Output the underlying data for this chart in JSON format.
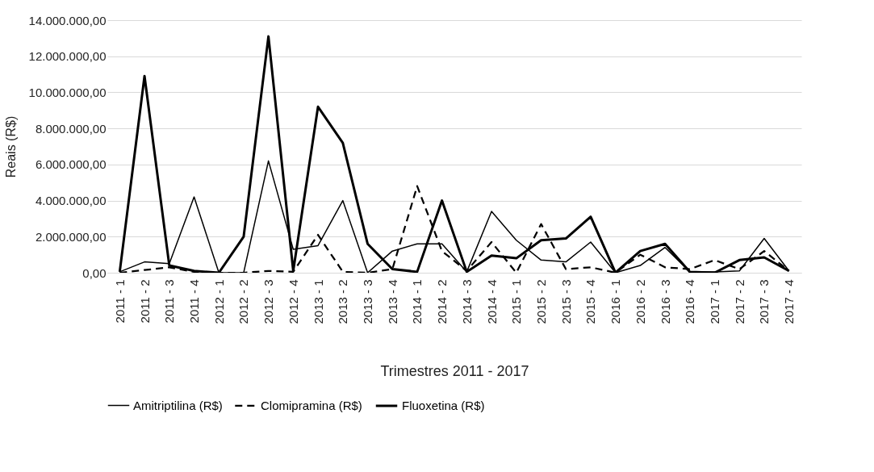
{
  "chart_data": {
    "type": "line",
    "xlabel": "Trimestres 2011 - 2017",
    "ylabel": "Reais (R$)",
    "categories": [
      "2011 - 1",
      "2011 - 2",
      "2011 - 3",
      "2011 - 4",
      "2012 - 1",
      "2012 - 2",
      "2012 - 3",
      "2012 - 4",
      "2013 - 1",
      "2013 - 2",
      "2013 - 3",
      "2013 - 4",
      "2014 - 1",
      "2014 - 2",
      "2014 - 3",
      "2014 - 4",
      "2015 - 1",
      "2015 - 2",
      "2015 - 3",
      "2015 - 4",
      "2016 - 1",
      "2016 - 2",
      "2016 - 3",
      "2016 - 4",
      "2017 - 1",
      "2017 - 2",
      "2017 - 3",
      "2017 - 4"
    ],
    "series": [
      {
        "name": "Amitriptilina (R$)",
        "color": "#000000",
        "line_style": "solid",
        "values": [
          50000,
          600000,
          500000,
          4200000,
          0,
          0,
          6200000,
          1300000,
          1500000,
          4000000,
          0,
          1200000,
          1600000,
          1600000,
          50000,
          3400000,
          1800000,
          700000,
          600000,
          1700000,
          0,
          400000,
          1400000,
          50000,
          50000,
          100000,
          1900000,
          100000
        ]
      },
      {
        "name": "Clomipramina (R$)",
        "color": "#000000",
        "line_style": "dashed",
        "values": [
          0,
          150000,
          300000,
          50000,
          0,
          0,
          100000,
          50000,
          2100000,
          50000,
          0,
          200000,
          4800000,
          1200000,
          100000,
          1700000,
          0,
          2700000,
          200000,
          300000,
          0,
          1000000,
          300000,
          200000,
          700000,
          200000,
          1200000,
          100000
        ]
      },
      {
        "name": "Fluoxetina (R$)",
        "color": "#000000",
        "line_style": "solid",
        "values": [
          50000,
          10900000,
          400000,
          100000,
          0,
          2000000,
          13100000,
          100000,
          9200000,
          7200000,
          1600000,
          200000,
          50000,
          4000000,
          50000,
          950000,
          800000,
          1800000,
          1900000,
          3100000,
          0,
          1200000,
          1600000,
          50000,
          0,
          700000,
          850000,
          100000
        ]
      }
    ],
    "ylim": [
      0,
      14000000
    ],
    "yticks": [
      {
        "value": 0,
        "label": "0,00"
      },
      {
        "value": 2000000,
        "label": "2.000.000,00"
      },
      {
        "value": 4000000,
        "label": "4.000.000,00"
      },
      {
        "value": 6000000,
        "label": "6.000.000,00"
      },
      {
        "value": 8000000,
        "label": "8.000.000,00"
      },
      {
        "value": 10000000,
        "label": "10.000.000,00"
      },
      {
        "value": 12000000,
        "label": "12.000.000,00"
      },
      {
        "value": 14000000,
        "label": "14.000.000,00"
      }
    ],
    "grid": "y",
    "legend": "bottom",
    "marker": "none"
  }
}
